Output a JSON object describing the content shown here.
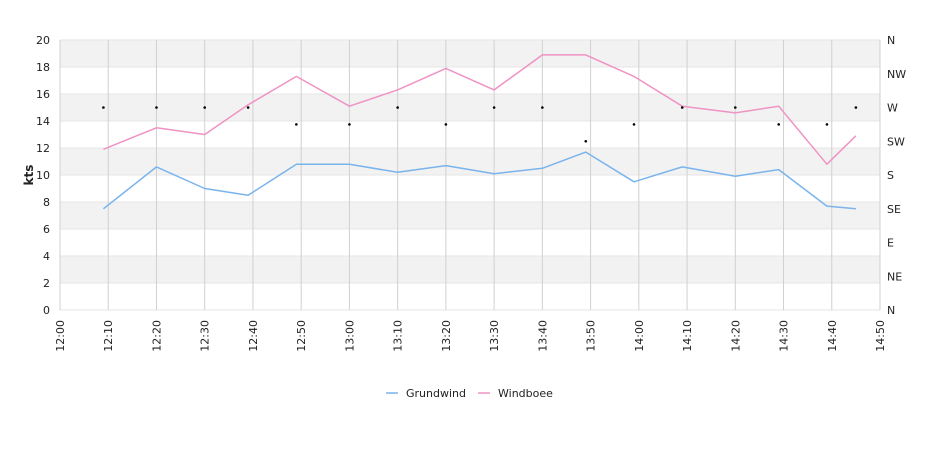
{
  "chart_data": {
    "type": "line",
    "title": "",
    "xlabel": "",
    "ylabel": "kts",
    "ylim": [
      0,
      20
    ],
    "y_ticks": [
      0,
      2,
      4,
      6,
      8,
      10,
      12,
      14,
      16,
      18,
      20
    ],
    "x_range": [
      "12:00",
      "14:50"
    ],
    "x_ticks": [
      "12:00",
      "12:10",
      "12:20",
      "12:30",
      "12:40",
      "12:50",
      "13:00",
      "13:10",
      "13:20",
      "13:30",
      "13:40",
      "13:50",
      "14:00",
      "14:10",
      "14:20",
      "14:30",
      "14:40",
      "14:50"
    ],
    "right_axis": {
      "labels": [
        "N",
        "NE",
        "E",
        "SE",
        "S",
        "SW",
        "W",
        "NW",
        "N"
      ]
    },
    "grid": true,
    "legend_position": "bottom",
    "series": [
      {
        "name": "Grundwind",
        "color": "#7ab4ec",
        "points": [
          {
            "x": "12:09",
            "y": 7.5
          },
          {
            "x": "12:20",
            "y": 10.6
          },
          {
            "x": "12:30",
            "y": 9.0
          },
          {
            "x": "12:39",
            "y": 8.5
          },
          {
            "x": "12:49",
            "y": 10.8
          },
          {
            "x": "13:00",
            "y": 10.8
          },
          {
            "x": "13:10",
            "y": 10.2
          },
          {
            "x": "13:20",
            "y": 10.7
          },
          {
            "x": "13:30",
            "y": 10.1
          },
          {
            "x": "13:40",
            "y": 10.5
          },
          {
            "x": "13:49",
            "y": 11.7
          },
          {
            "x": "13:59",
            "y": 9.5
          },
          {
            "x": "14:09",
            "y": 10.6
          },
          {
            "x": "14:20",
            "y": 9.9
          },
          {
            "x": "14:29",
            "y": 10.4
          },
          {
            "x": "14:39",
            "y": 7.7
          },
          {
            "x": "14:45",
            "y": 7.5
          }
        ]
      },
      {
        "name": "Windboee",
        "color": "#ef93c3",
        "points": [
          {
            "x": "12:09",
            "y": 11.9
          },
          {
            "x": "12:20",
            "y": 13.5
          },
          {
            "x": "12:30",
            "y": 13.0
          },
          {
            "x": "12:39",
            "y": 15.2
          },
          {
            "x": "12:49",
            "y": 17.3
          },
          {
            "x": "13:00",
            "y": 15.1
          },
          {
            "x": "13:10",
            "y": 16.3
          },
          {
            "x": "13:20",
            "y": 17.9
          },
          {
            "x": "13:30",
            "y": 16.3
          },
          {
            "x": "13:40",
            "y": 18.9
          },
          {
            "x": "13:49",
            "y": 18.9
          },
          {
            "x": "13:59",
            "y": 17.3
          },
          {
            "x": "14:09",
            "y": 15.1
          },
          {
            "x": "14:20",
            "y": 14.6
          },
          {
            "x": "14:29",
            "y": 15.1
          },
          {
            "x": "14:39",
            "y": 10.8
          },
          {
            "x": "14:45",
            "y": 12.9
          }
        ]
      },
      {
        "type": "scatter",
        "color": "#000000",
        "axis": "right",
        "points": [
          {
            "x": "12:09",
            "y": "W"
          },
          {
            "x": "12:20",
            "y": "W"
          },
          {
            "x": "12:30",
            "y": "W"
          },
          {
            "x": "12:39",
            "y": "W"
          },
          {
            "x": "12:49",
            "y": "WSW"
          },
          {
            "x": "13:00",
            "y": "WSW"
          },
          {
            "x": "13:10",
            "y": "W"
          },
          {
            "x": "13:20",
            "y": "WSW"
          },
          {
            "x": "13:30",
            "y": "W"
          },
          {
            "x": "13:40",
            "y": "W"
          },
          {
            "x": "13:49",
            "y": "SW"
          },
          {
            "x": "13:59",
            "y": "WSW"
          },
          {
            "x": "14:09",
            "y": "W"
          },
          {
            "x": "14:20",
            "y": "W"
          },
          {
            "x": "14:29",
            "y": "WSW"
          },
          {
            "x": "14:39",
            "y": "WSW"
          },
          {
            "x": "14:45",
            "y": "W"
          }
        ]
      }
    ]
  }
}
